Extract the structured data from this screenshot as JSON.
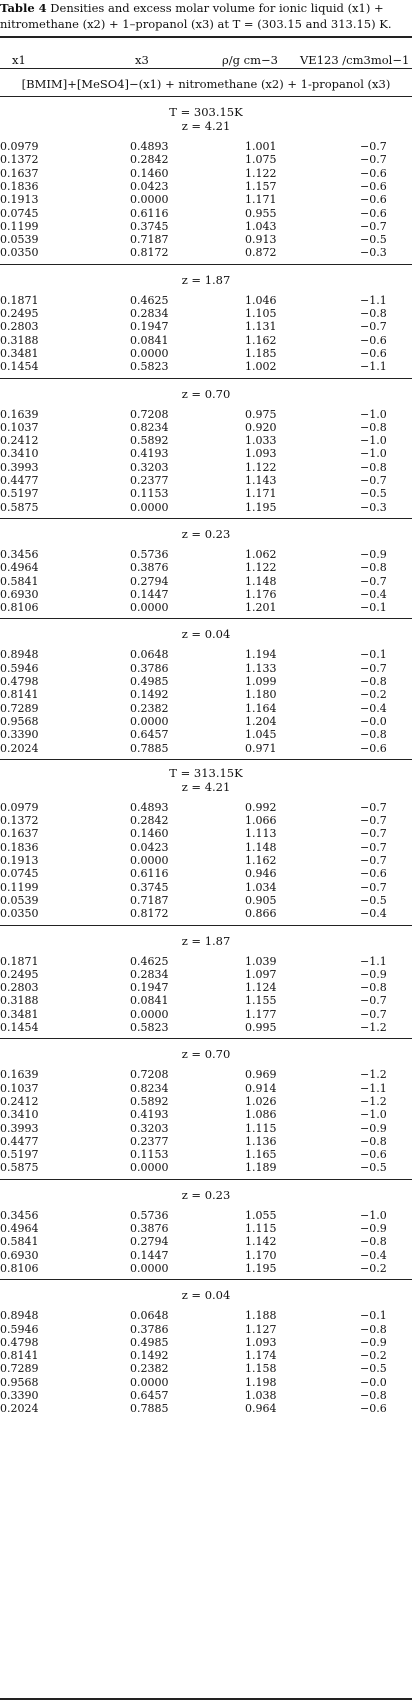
{
  "caption": {
    "label": "Table 4",
    "text": "Densities and excess molar volume for ionic liquid (x1) + nitromethane (x2) + 1–propanol (x3) at T = (303.15 and 313.15) K."
  },
  "headers": [
    "x1",
    "x3",
    "ρ/g cm−3",
    "VE123 /cm3mol−1"
  ],
  "system": "[BMIM]+[MeSO4]−(x1) + nitromethane (x2) + 1-propanol (x3)",
  "temperatures": [
    {
      "title": "T = 303.15K",
      "groups": [
        {
          "z": "z = 4.21",
          "rows": [
            [
              "0.0979",
              "0.4893",
              "1.001",
              "−0.7"
            ],
            [
              "0.1372",
              "0.2842",
              "1.075",
              "−0.7"
            ],
            [
              "0.1637",
              "0.1460",
              "1.122",
              "−0.6"
            ],
            [
              "0.1836",
              "0.0423",
              "1.157",
              "−0.6"
            ],
            [
              "0.1913",
              "0.0000",
              "1.171",
              "−0.6"
            ],
            [
              "0.0745",
              "0.6116",
              "0.955",
              "−0.6"
            ],
            [
              "0.1199",
              "0.3745",
              "1.043",
              "−0.7"
            ],
            [
              "0.0539",
              "0.7187",
              "0.913",
              "−0.5"
            ],
            [
              "0.0350",
              "0.8172",
              "0.872",
              "−0.3"
            ]
          ]
        },
        {
          "z": "z = 1.87",
          "rows": [
            [
              "0.1871",
              "0.4625",
              "1.046",
              "−1.1"
            ],
            [
              "0.2495",
              "0.2834",
              "1.105",
              "−0.8"
            ],
            [
              "0.2803",
              "0.1947",
              "1.131",
              "−0.7"
            ],
            [
              "0.3188",
              "0.0841",
              "1.162",
              "−0.6"
            ],
            [
              "0.3481",
              "0.0000",
              "1.185",
              "−0.6"
            ],
            [
              "0.1454",
              "0.5823",
              "1.002",
              "−1.1"
            ]
          ]
        },
        {
          "z": "z = 0.70",
          "rows": [
            [
              "0.1639",
              "0.7208",
              "0.975",
              "−1.0"
            ],
            [
              "0.1037",
              "0.8234",
              "0.920",
              "−0.8"
            ],
            [
              "0.2412",
              "0.5892",
              "1.033",
              "−1.0"
            ],
            [
              "0.3410",
              "0.4193",
              "1.093",
              "−1.0"
            ],
            [
              "0.3993",
              "0.3203",
              "1.122",
              "−0.8"
            ],
            [
              "0.4477",
              "0.2377",
              "1.143",
              "−0.7"
            ],
            [
              "0.5197",
              "0.1153",
              "1.171",
              "−0.5"
            ],
            [
              "0.5875",
              "0.0000",
              "1.195",
              "−0.3"
            ]
          ]
        },
        {
          "z": "z = 0.23",
          "rows": [
            [
              "0.3456",
              "0.5736",
              "1.062",
              "−0.9"
            ],
            [
              "0.4964",
              "0.3876",
              "1.122",
              "−0.8"
            ],
            [
              "0.5841",
              "0.2794",
              "1.148",
              "−0.7"
            ],
            [
              "0.6930",
              "0.1447",
              "1.176",
              "−0.4"
            ],
            [
              "0.8106",
              "0.0000",
              "1.201",
              "−0.1"
            ]
          ]
        },
        {
          "z": "z = 0.04",
          "rows": [
            [
              "0.8948",
              "0.0648",
              "1.194",
              "−0.1"
            ],
            [
              "0.5946",
              "0.3786",
              "1.133",
              "−0.7"
            ],
            [
              "0.4798",
              "0.4985",
              "1.099",
              "−0.8"
            ],
            [
              "0.8141",
              "0.1492",
              "1.180",
              "−0.2"
            ],
            [
              "0.7289",
              "0.2382",
              "1.164",
              "−0.4"
            ],
            [
              "0.9568",
              "0.0000",
              "1.204",
              "−0.0"
            ],
            [
              "0.3390",
              "0.6457",
              "1.045",
              "−0.8"
            ],
            [
              "0.2024",
              "0.7885",
              "0.971",
              "−0.6"
            ]
          ]
        }
      ]
    },
    {
      "title": "T = 313.15K",
      "groups": [
        {
          "z": "z = 4.21",
          "rows": [
            [
              "0.0979",
              "0.4893",
              "0.992",
              "−0.7"
            ],
            [
              "0.1372",
              "0.2842",
              "1.066",
              "−0.7"
            ],
            [
              "0.1637",
              "0.1460",
              "1.113",
              "−0.7"
            ],
            [
              "0.1836",
              "0.0423",
              "1.148",
              "−0.7"
            ],
            [
              "0.1913",
              "0.0000",
              "1.162",
              "−0.7"
            ],
            [
              "0.0745",
              "0.6116",
              "0.946",
              "−0.6"
            ],
            [
              "0.1199",
              "0.3745",
              "1.034",
              "−0.7"
            ],
            [
              "0.0539",
              "0.7187",
              "0.905",
              "−0.5"
            ],
            [
              "0.0350",
              "0.8172",
              "0.866",
              "−0.4"
            ]
          ]
        },
        {
          "z": "z = 1.87",
          "rows": [
            [
              "0.1871",
              "0.4625",
              "1.039",
              "−1.1"
            ],
            [
              "0.2495",
              "0.2834",
              "1.097",
              "−0.9"
            ],
            [
              "0.2803",
              "0.1947",
              "1.124",
              "−0.8"
            ],
            [
              "0.3188",
              "0.0841",
              "1.155",
              "−0.7"
            ],
            [
              "0.3481",
              "0.0000",
              "1.177",
              "−0.7"
            ],
            [
              "0.1454",
              "0.5823",
              "0.995",
              "−1.2"
            ]
          ]
        },
        {
          "z": "z = 0.70",
          "rows": [
            [
              "0.1639",
              "0.7208",
              "0.969",
              "−1.2"
            ],
            [
              "0.1037",
              "0.8234",
              "0.914",
              "−1.1"
            ],
            [
              "0.2412",
              "0.5892",
              "1.026",
              "−1.2"
            ],
            [
              "0.3410",
              "0.4193",
              "1.086",
              "−1.0"
            ],
            [
              "0.3993",
              "0.3203",
              "1.115",
              "−0.9"
            ],
            [
              "0.4477",
              "0.2377",
              "1.136",
              "−0.8"
            ],
            [
              "0.5197",
              "0.1153",
              "1.165",
              "−0.6"
            ],
            [
              "0.5875",
              "0.0000",
              "1.189",
              "−0.5"
            ]
          ]
        },
        {
          "z": "z = 0.23",
          "rows": [
            [
              "0.3456",
              "0.5736",
              "1.055",
              "−1.0"
            ],
            [
              "0.4964",
              "0.3876",
              "1.115",
              "−0.9"
            ],
            [
              "0.5841",
              "0.2794",
              "1.142",
              "−0.8"
            ],
            [
              "0.6930",
              "0.1447",
              "1.170",
              "−0.4"
            ],
            [
              "0.8106",
              "0.0000",
              "1.195",
              "−0.2"
            ]
          ]
        },
        {
          "z": "z = 0.04",
          "rows": [
            [
              "0.8948",
              "0.0648",
              "1.188",
              "−0.1"
            ],
            [
              "0.5946",
              "0.3786",
              "1.127",
              "−0.8"
            ],
            [
              "0.4798",
              "0.4985",
              "1.093",
              "−0.9"
            ],
            [
              "0.8141",
              "0.1492",
              "1.174",
              "−0.2"
            ],
            [
              "0.7289",
              "0.2382",
              "1.158",
              "−0.5"
            ],
            [
              "0.9568",
              "0.0000",
              "1.198",
              "−0.0"
            ],
            [
              "0.3390",
              "0.6457",
              "1.038",
              "−0.8"
            ],
            [
              "0.2024",
              "0.7885",
              "0.964",
              "−0.6"
            ]
          ]
        }
      ]
    }
  ]
}
